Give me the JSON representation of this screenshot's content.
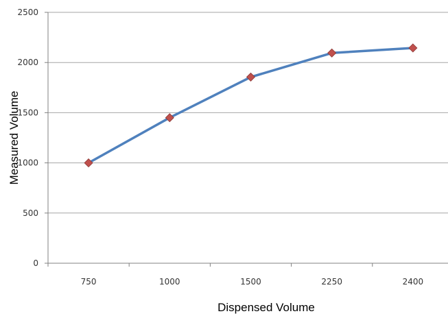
{
  "chart_data": {
    "type": "line",
    "categories": [
      "750",
      "1000",
      "1500",
      "2250",
      "2400"
    ],
    "series": [
      {
        "values": [
          1000,
          1450,
          1855,
          2095,
          2145
        ],
        "line_color": "#4f81bd",
        "marker_color": "#c0504d",
        "marker": "diamond"
      }
    ],
    "title": "",
    "xlabel": "Dispensed Volume",
    "ylabel": "Measured Volume",
    "ylim": [
      0,
      2500
    ],
    "yticks": [
      0,
      500,
      1000,
      1500,
      2000,
      2500
    ],
    "grid": "horizontal",
    "gridline_color": "#a6a6a6",
    "legend": "none"
  }
}
